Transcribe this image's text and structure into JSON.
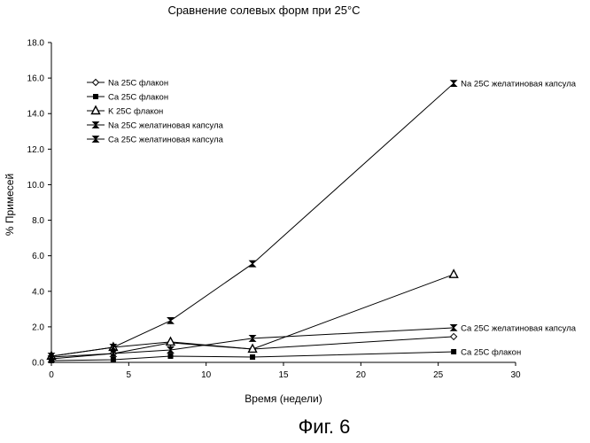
{
  "chart_data": {
    "type": "line",
    "title": "Сравнение солевых форм при 25°C",
    "xlabel": "Время (недели)",
    "ylabel": "% Примесей",
    "xlim": [
      0,
      30
    ],
    "ylim": [
      0,
      18
    ],
    "xticks": [
      "0",
      "5",
      "10",
      "15",
      "20",
      "25",
      "30"
    ],
    "yticks": [
      "0.0",
      "2.0",
      "4.0",
      "6.0",
      "8.0",
      "10.0",
      "12.0",
      "14.0",
      "16.0",
      "18.0"
    ],
    "grid": false,
    "legend_position": "top-left",
    "series": [
      {
        "name": "Na 25C флакон",
        "marker": "diamond",
        "x": [
          0,
          4,
          7.7,
          13,
          26
        ],
        "y": [
          0.3,
          0.5,
          1.1,
          0.75,
          1.45
        ]
      },
      {
        "name": "Ca 25C флакон",
        "marker": "square",
        "x": [
          0,
          4,
          7.7,
          13,
          26
        ],
        "y": [
          0.1,
          0.15,
          0.35,
          0.3,
          0.6
        ]
      },
      {
        "name": "K 25C флакон",
        "marker": "triangle",
        "x": [
          0,
          4,
          7.7,
          13,
          26
        ],
        "y": [
          0.35,
          0.85,
          1.15,
          0.75,
          4.95
        ]
      },
      {
        "name": "Na 25C желатиновая капсула",
        "marker": "bowtie",
        "x": [
          0,
          4,
          7.7,
          13,
          26
        ],
        "y": [
          0.35,
          0.85,
          2.35,
          5.55,
          15.7
        ]
      },
      {
        "name": "Ca 25C желатиновая капсула",
        "marker": "bowtie",
        "x": [
          0,
          4,
          7.7,
          13,
          26
        ],
        "y": [
          0.2,
          0.5,
          0.7,
          1.35,
          1.95
        ]
      }
    ],
    "annotations": [
      {
        "text": "Na 25C желатиновая капсула",
        "x": 26,
        "y": 15.7
      },
      {
        "text": "Ca 25C желатиновая капсула",
        "x": 26,
        "y": 1.95
      },
      {
        "text": "Ca 25C флакон",
        "x": 26,
        "y": 0.6
      }
    ]
  },
  "caption": "Фиг. 6"
}
